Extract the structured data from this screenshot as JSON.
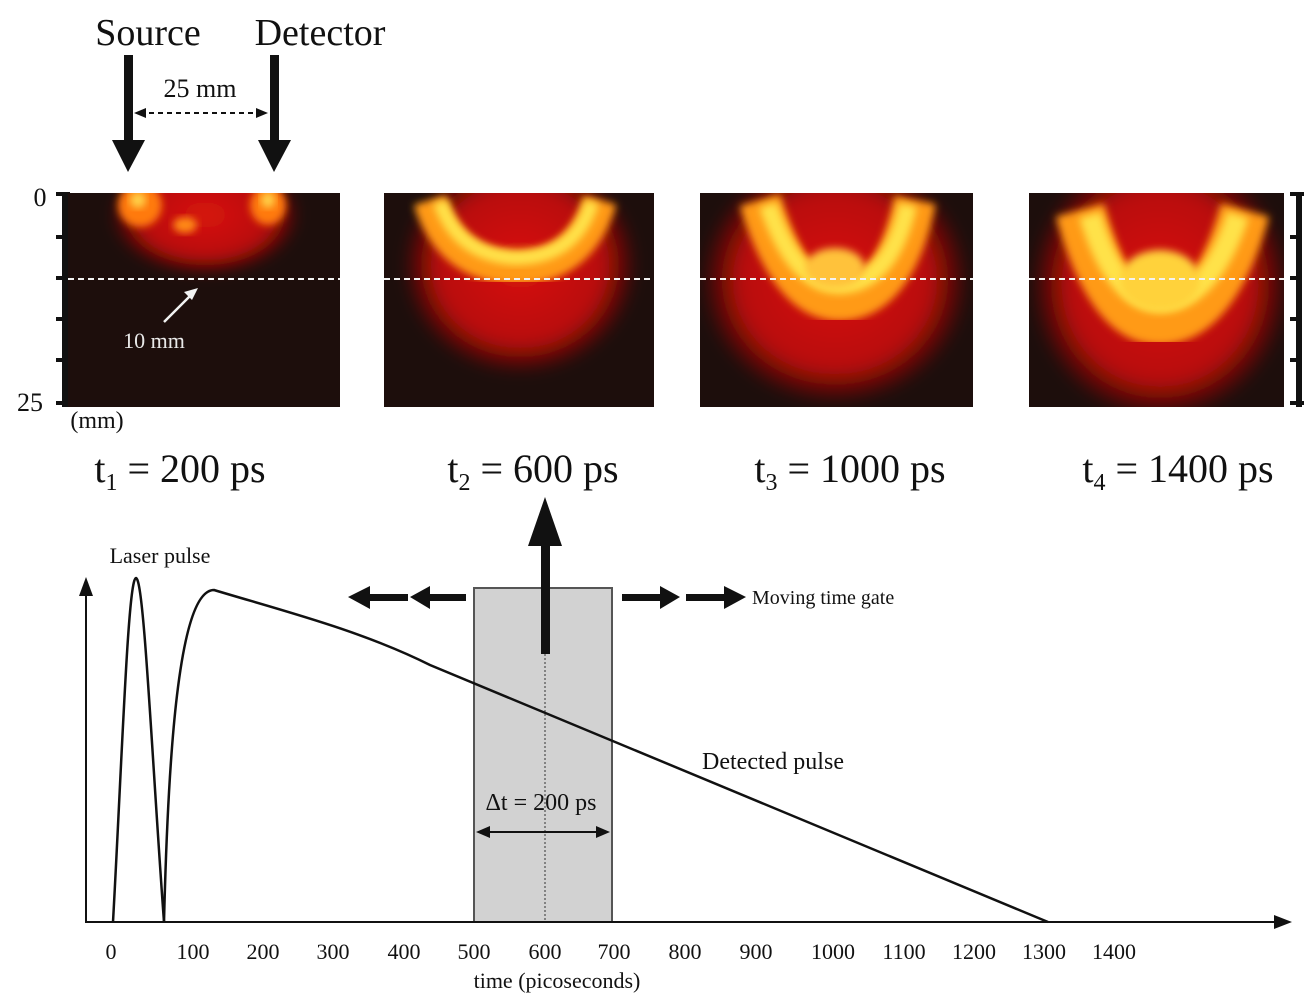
{
  "header": {
    "source_label": "Source",
    "detector_label": "Detector",
    "separation_label": "25 mm"
  },
  "depth_axis": {
    "top_label": "0",
    "bottom_label": "25",
    "unit_label": "(mm)",
    "gate_depth_label": "10 mm"
  },
  "panels": [
    {
      "var": "t",
      "sub": "1",
      "rest": " = 200 ps",
      "time_ps": 200
    },
    {
      "var": "t",
      "sub": "2",
      "rest": " = 600 ps",
      "time_ps": 600
    },
    {
      "var": "t",
      "sub": "3",
      "rest": " = 1000 ps",
      "time_ps": 1000
    },
    {
      "var": "t",
      "sub": "4",
      "rest": " = 1400 ps",
      "time_ps": 1400
    }
  ],
  "plot": {
    "laser_pulse_label": "Laser pulse",
    "detected_pulse_label": "Detected pulse",
    "moving_gate_label": "Moving time gate",
    "gate_width_label": "Δt = 200 ps",
    "gate_range_ps": [
      500,
      700
    ],
    "gate_center_ps": 600,
    "x_axis_label": "time (picoseconds)",
    "x_ticks": [
      "0",
      "100",
      "200",
      "300",
      "400",
      "500",
      "600",
      "700",
      "800",
      "900",
      "1000",
      "1100",
      "1200",
      "1300",
      "1400"
    ]
  },
  "colors": {
    "panel_background": "#1d0e0c",
    "glow_red": "#d4100a",
    "glow_orange": "#ff7a10",
    "glow_yellow": "#ffe24a",
    "gate_fill": "#d2d2d2",
    "ink": "#111111"
  }
}
